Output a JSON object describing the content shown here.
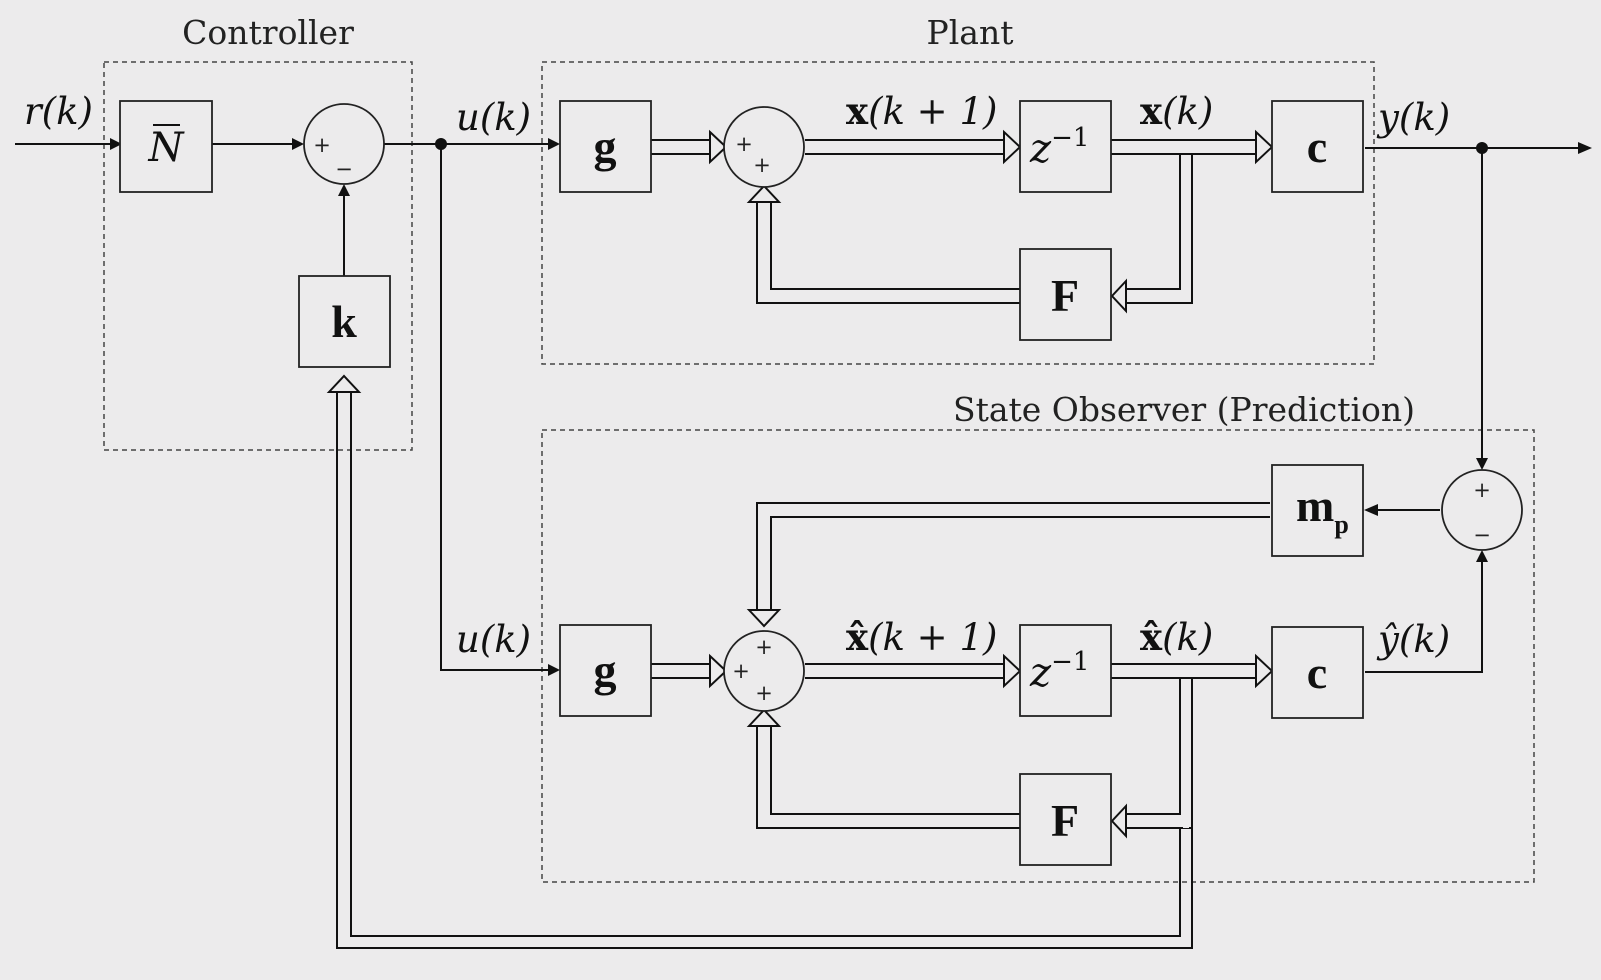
{
  "frames": {
    "controller": "Controller",
    "plant": "Plant",
    "observer": "State Observer (Prediction)"
  },
  "blocks": {
    "nbar": "N",
    "k": "k",
    "plant_g": "g",
    "plant_delay": "z",
    "plant_delay_exp": "−1",
    "plant_c": "c",
    "plant_F": "F",
    "obs_g": "g",
    "obs_delay": "z",
    "obs_delay_exp": "−1",
    "obs_c": "c",
    "obs_F": "F",
    "mp": "m",
    "mp_sub": "p"
  },
  "signals": {
    "r": "r(k)",
    "u_top": "u(k)",
    "u_bottom": "u(k)",
    "y": "y(k)",
    "x_next": {
      "sym": "x",
      "rest": "(k + 1)"
    },
    "x": {
      "sym": "x",
      "rest": "(k)"
    },
    "xhat_next": {
      "sym": "x̂",
      "rest": "(k + 1)"
    },
    "xhat": {
      "sym": "x̂",
      "rest": "(k)"
    },
    "yhat": "ŷ(k)"
  },
  "signs": {
    "plus": "+",
    "minus": "−"
  }
}
